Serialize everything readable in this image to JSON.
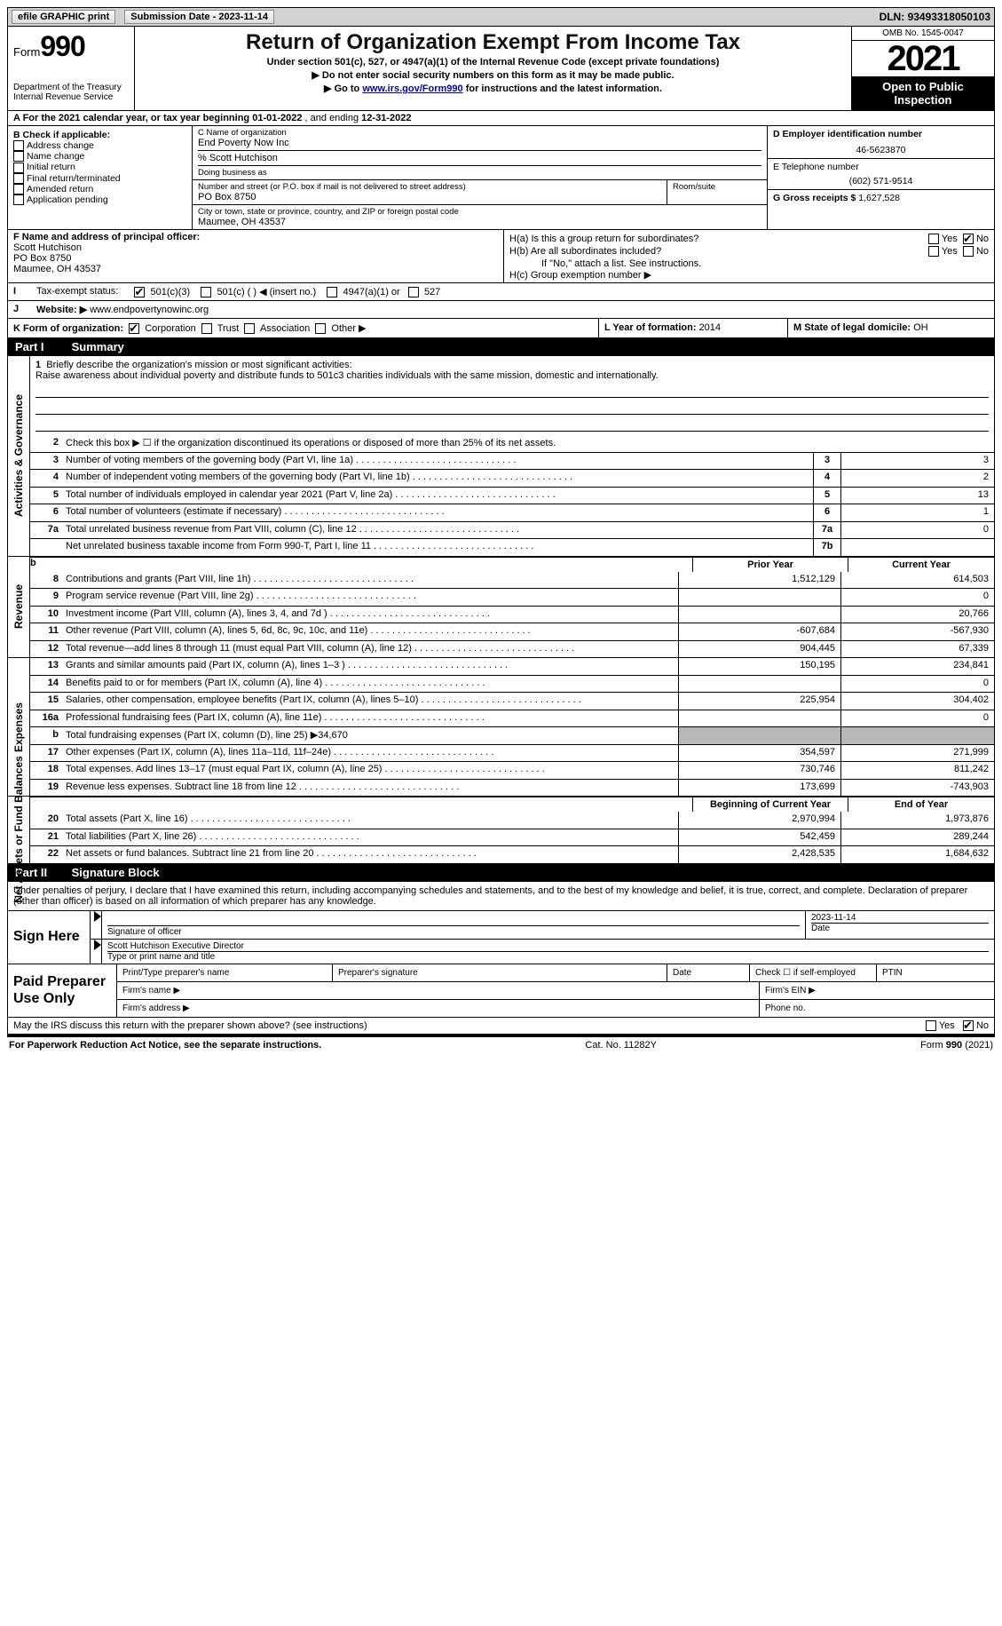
{
  "topbar": {
    "efile": "efile GRAPHIC print",
    "submission_label": "Submission Date - ",
    "submission_date": "2023-11-14",
    "dln_label": "DLN: ",
    "dln": "93493318050103"
  },
  "header": {
    "form_word": "Form",
    "form_num": "990",
    "dept": "Department of the Treasury",
    "irs": "Internal Revenue Service",
    "title": "Return of Organization Exempt From Income Tax",
    "sub": "Under section 501(c), 527, or 4947(a)(1) of the Internal Revenue Code (except private foundations)",
    "instr1": "▶ Do not enter social security numbers on this form as it may be made public.",
    "instr2_pre": "▶ Go to ",
    "instr2_link": "www.irs.gov/Form990",
    "instr2_post": " for instructions and the latest information.",
    "omb": "OMB No. 1545-0047",
    "year": "2021",
    "open": "Open to Public Inspection"
  },
  "rowA": {
    "text_pre": "A For the 2021 calendar year, or tax year beginning ",
    "begin": "01-01-2022",
    "mid": "   , and ending ",
    "end": "12-31-2022"
  },
  "colB": {
    "label": "B Check if applicable:",
    "items": [
      "Address change",
      "Name change",
      "Initial return",
      "Final return/terminated",
      "Amended return",
      "Application pending"
    ]
  },
  "colC": {
    "name_label": "C Name of organization",
    "name": "End Poverty Now Inc",
    "care_of": "% Scott Hutchison",
    "dba_label": "Doing business as",
    "street_label": "Number and street (or P.O. box if mail is not delivered to street address)",
    "street": "PO Box 8750",
    "room_label": "Room/suite",
    "city_label": "City or town, state or province, country, and ZIP or foreign postal code",
    "city": "Maumee, OH  43537"
  },
  "colD": {
    "ein_label": "D Employer identification number",
    "ein": "46-5623870",
    "phone_label": "E Telephone number",
    "phone": "(602) 571-9514",
    "gross_label": "G Gross receipts $ ",
    "gross": "1,627,528"
  },
  "colF": {
    "label": "F Name and address of principal officer:",
    "name": "Scott Hutchison",
    "street": "PO Box 8750",
    "city": "Maumee, OH  43537"
  },
  "colH": {
    "a_label": "H(a)  Is this a group return for subordinates?",
    "a_no_checked": true,
    "b_label": "H(b)  Are all subordinates included?",
    "b_note": "If \"No,\" attach a list. See instructions.",
    "c_label": "H(c)  Group exemption number ▶"
  },
  "rowI": {
    "label": "I",
    "text": "Tax-exempt status:",
    "opt1": "501(c)(3)",
    "opt2": "501(c) (  ) ◀ (insert no.)",
    "opt3": "4947(a)(1) or",
    "opt4": "527"
  },
  "rowJ": {
    "label": "J",
    "text": "Website: ▶ ",
    "val": "www.endpovertynowinc.org"
  },
  "rowK": {
    "label": "K Form of organization:",
    "opts": [
      "Corporation",
      "Trust",
      "Association",
      "Other ▶"
    ],
    "L_label": "L Year of formation: ",
    "L_val": "2014",
    "M_label": "M State of legal domicile: ",
    "M_val": "OH"
  },
  "part1": {
    "num": "Part I",
    "title": "Summary"
  },
  "mission": {
    "num": "1",
    "label": "Briefly describe the organization's mission or most significant activities:",
    "text": "Raise awareness about individual poverty and distribute funds to 501c3 charities individuals with the same mission, domestic and internationally."
  },
  "side_labels": {
    "gov": "Activities & Governance",
    "rev": "Revenue",
    "exp": "Expenses",
    "net": "Net Assets or Fund Balances"
  },
  "gov_lines": [
    {
      "n": "2",
      "d": "Check this box ▶ ☐  if the organization discontinued its operations or disposed of more than 25% of its net assets."
    },
    {
      "n": "3",
      "d": "Number of voting members of the governing body (Part VI, line 1a)",
      "box": "3",
      "v": "3"
    },
    {
      "n": "4",
      "d": "Number of independent voting members of the governing body (Part VI, line 1b)",
      "box": "4",
      "v": "2"
    },
    {
      "n": "5",
      "d": "Total number of individuals employed in calendar year 2021 (Part V, line 2a)",
      "box": "5",
      "v": "13"
    },
    {
      "n": "6",
      "d": "Total number of volunteers (estimate if necessary)",
      "box": "6",
      "v": "1"
    },
    {
      "n": "7a",
      "d": "Total unrelated business revenue from Part VIII, column (C), line 12",
      "box": "7a",
      "v": "0"
    },
    {
      "n": "",
      "d": "Net unrelated business taxable income from Form 990-T, Part I, line 11",
      "box": "7b",
      "v": ""
    }
  ],
  "col_headers": {
    "prior": "Prior Year",
    "current": "Current Year",
    "boy": "Beginning of Current Year",
    "eoy": "End of Year"
  },
  "rev_lines": [
    {
      "n": "8",
      "d": "Contributions and grants (Part VIII, line 1h)",
      "p": "1,512,129",
      "c": "614,503"
    },
    {
      "n": "9",
      "d": "Program service revenue (Part VIII, line 2g)",
      "p": "",
      "c": "0"
    },
    {
      "n": "10",
      "d": "Investment income (Part VIII, column (A), lines 3, 4, and 7d )",
      "p": "",
      "c": "20,766"
    },
    {
      "n": "11",
      "d": "Other revenue (Part VIII, column (A), lines 5, 6d, 8c, 9c, 10c, and 11e)",
      "p": "-607,684",
      "c": "-567,930"
    },
    {
      "n": "12",
      "d": "Total revenue—add lines 8 through 11 (must equal Part VIII, column (A), line 12)",
      "p": "904,445",
      "c": "67,339"
    }
  ],
  "exp_lines": [
    {
      "n": "13",
      "d": "Grants and similar amounts paid (Part IX, column (A), lines 1–3 )",
      "p": "150,195",
      "c": "234,841"
    },
    {
      "n": "14",
      "d": "Benefits paid to or for members (Part IX, column (A), line 4)",
      "p": "",
      "c": "0"
    },
    {
      "n": "15",
      "d": "Salaries, other compensation, employee benefits (Part IX, column (A), lines 5–10)",
      "p": "225,954",
      "c": "304,402"
    },
    {
      "n": "16a",
      "d": "Professional fundraising fees (Part IX, column (A), line 11e)",
      "p": "",
      "c": "0"
    },
    {
      "n": "b",
      "d": "Total fundraising expenses (Part IX, column (D), line 25) ▶34,670",
      "grey": true
    },
    {
      "n": "17",
      "d": "Other expenses (Part IX, column (A), lines 11a–11d, 11f–24e)",
      "p": "354,597",
      "c": "271,999"
    },
    {
      "n": "18",
      "d": "Total expenses. Add lines 13–17 (must equal Part IX, column (A), line 25)",
      "p": "730,746",
      "c": "811,242"
    },
    {
      "n": "19",
      "d": "Revenue less expenses. Subtract line 18 from line 12",
      "p": "173,699",
      "c": "-743,903"
    }
  ],
  "net_lines": [
    {
      "n": "20",
      "d": "Total assets (Part X, line 16)",
      "p": "2,970,994",
      "c": "1,973,876"
    },
    {
      "n": "21",
      "d": "Total liabilities (Part X, line 26)",
      "p": "542,459",
      "c": "289,244"
    },
    {
      "n": "22",
      "d": "Net assets or fund balances. Subtract line 21 from line 20",
      "p": "2,428,535",
      "c": "1,684,632"
    }
  ],
  "part2": {
    "num": "Part II",
    "title": "Signature Block"
  },
  "sig_text": "Under penalties of perjury, I declare that I have examined this return, including accompanying schedules and statements, and to the best of my knowledge and belief, it is true, correct, and complete. Declaration of preparer (other than officer) is based on all information of which preparer has any knowledge.",
  "sign": {
    "here": "Sign Here",
    "sig_label": "Signature of officer",
    "date_label": "Date",
    "date_val": "2023-11-14",
    "name_val": "Scott Hutchison  Executive Director",
    "name_label": "Type or print name and title"
  },
  "prep": {
    "title": "Paid Preparer Use Only",
    "c1": "Print/Type preparer's name",
    "c2": "Preparer's signature",
    "c3": "Date",
    "c4_pre": "Check ☐ if self-employed",
    "c5": "PTIN",
    "firm_name": "Firm's name   ▶",
    "firm_ein": "Firm's EIN ▶",
    "firm_addr": "Firm's address ▶",
    "phone": "Phone no."
  },
  "discuss": {
    "text": "May the IRS discuss this return with the preparer shown above? (see instructions)",
    "no_checked": true
  },
  "footer": {
    "left": "For Paperwork Reduction Act Notice, see the separate instructions.",
    "mid": "Cat. No. 11282Y",
    "right": "Form 990 (2021)"
  }
}
